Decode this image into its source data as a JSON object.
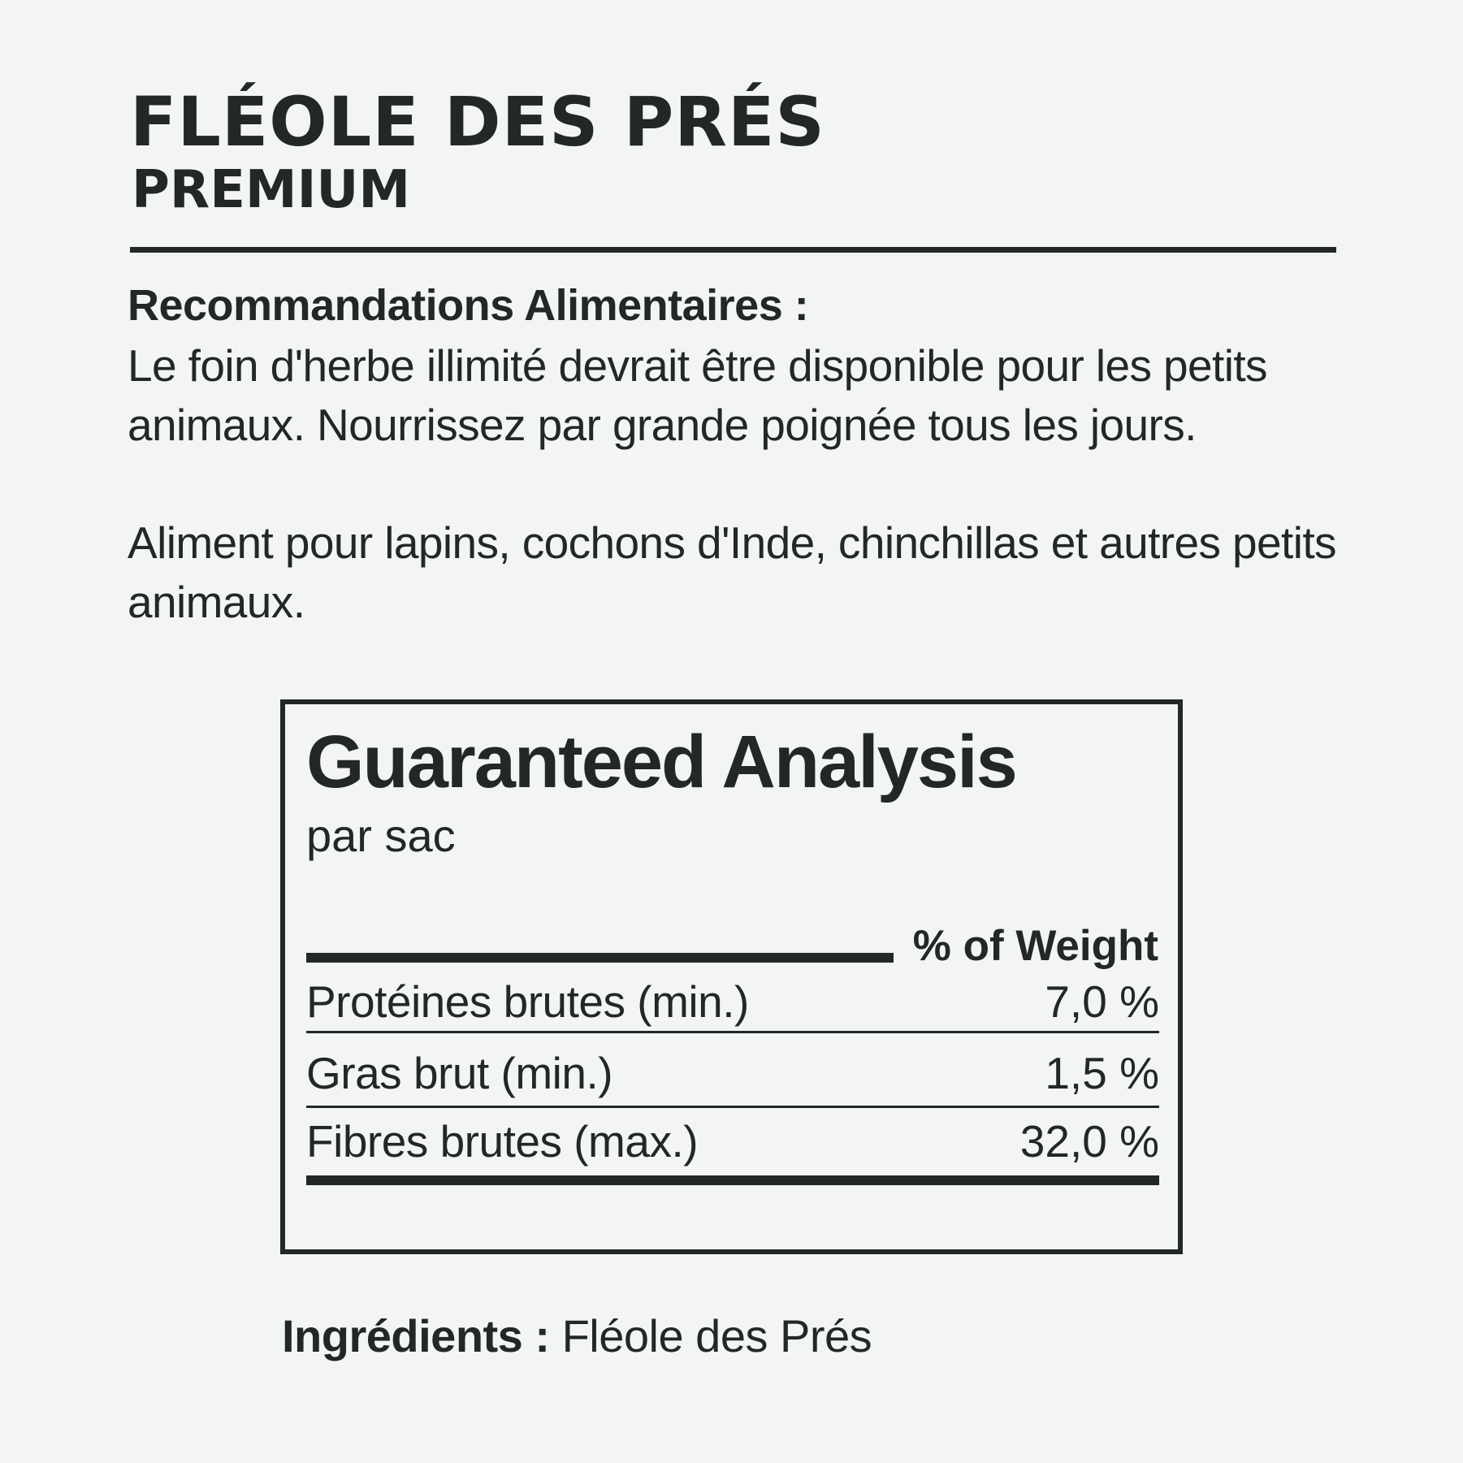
{
  "header": {
    "title": "FLÉOLE DES PRÉS",
    "subtitle": "PREMIUM"
  },
  "recommendations": {
    "heading": "Recommandations Alimentaires :",
    "text": "Le foin d'herbe illimité devrait être disponible pour les petits animaux. Nourrissez par grande poignée tous les jours.",
    "audience": "Aliment pour lapins, cochons d'Inde, chinchillas et autres petits animaux."
  },
  "analysis": {
    "title": "Guaranteed Analysis",
    "subtitle": "par sac",
    "column_header": "% of Weight",
    "rows": [
      {
        "label": "Protéines brutes (min.)",
        "value": "7,0 %"
      },
      {
        "label": "Gras brut (min.)",
        "value": "1,5 %"
      },
      {
        "label": "Fibres brutes (max.)",
        "value": "32,0 %"
      }
    ]
  },
  "ingredients": {
    "label": "Ingrédients :",
    "value": "Fléole des Prés"
  },
  "colors": {
    "text": "#222823",
    "background": "#f3f4f5"
  }
}
